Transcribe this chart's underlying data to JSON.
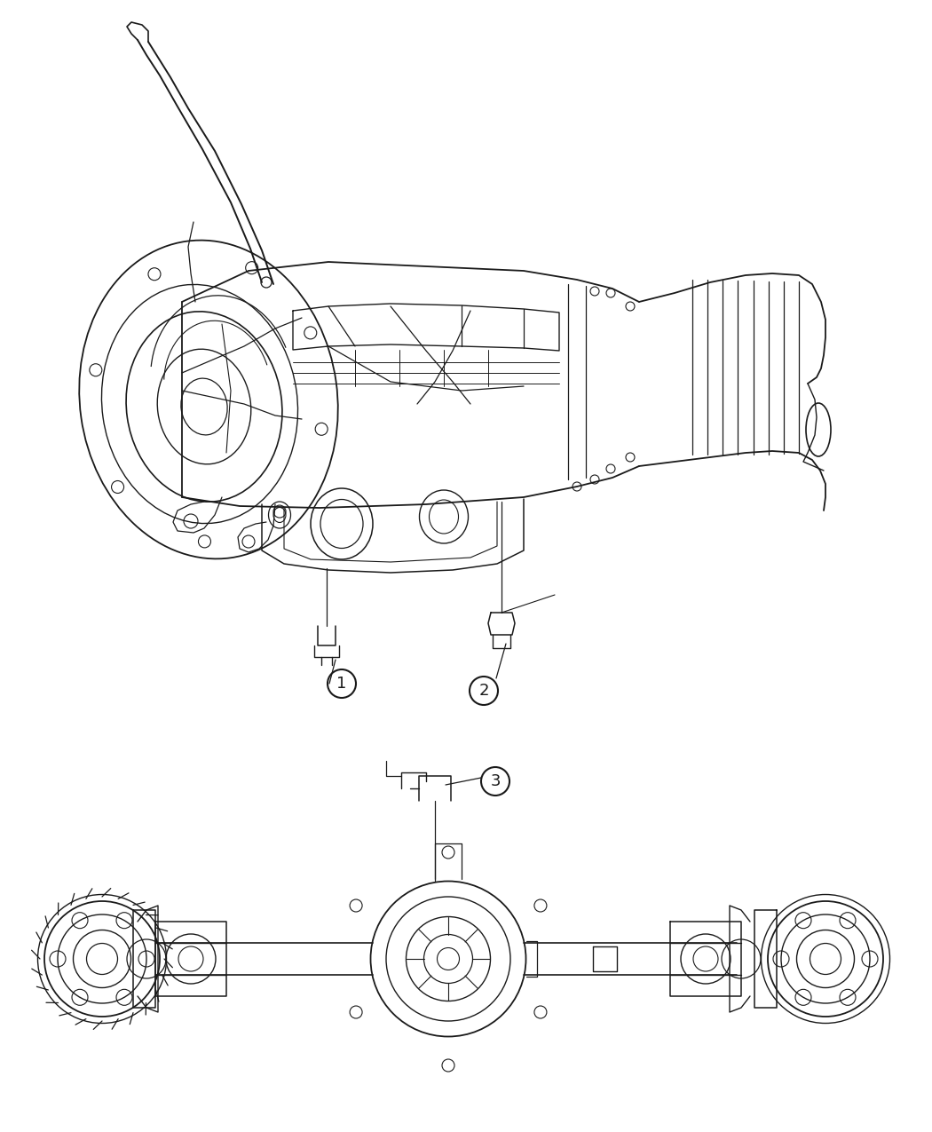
{
  "background_color": "#ffffff",
  "line_color": "#1a1a1a",
  "lw": 1.0,
  "figure_width": 10.5,
  "figure_height": 12.75,
  "dpi": 100,
  "label_1": "1",
  "label_2": "2",
  "label_3": "3"
}
